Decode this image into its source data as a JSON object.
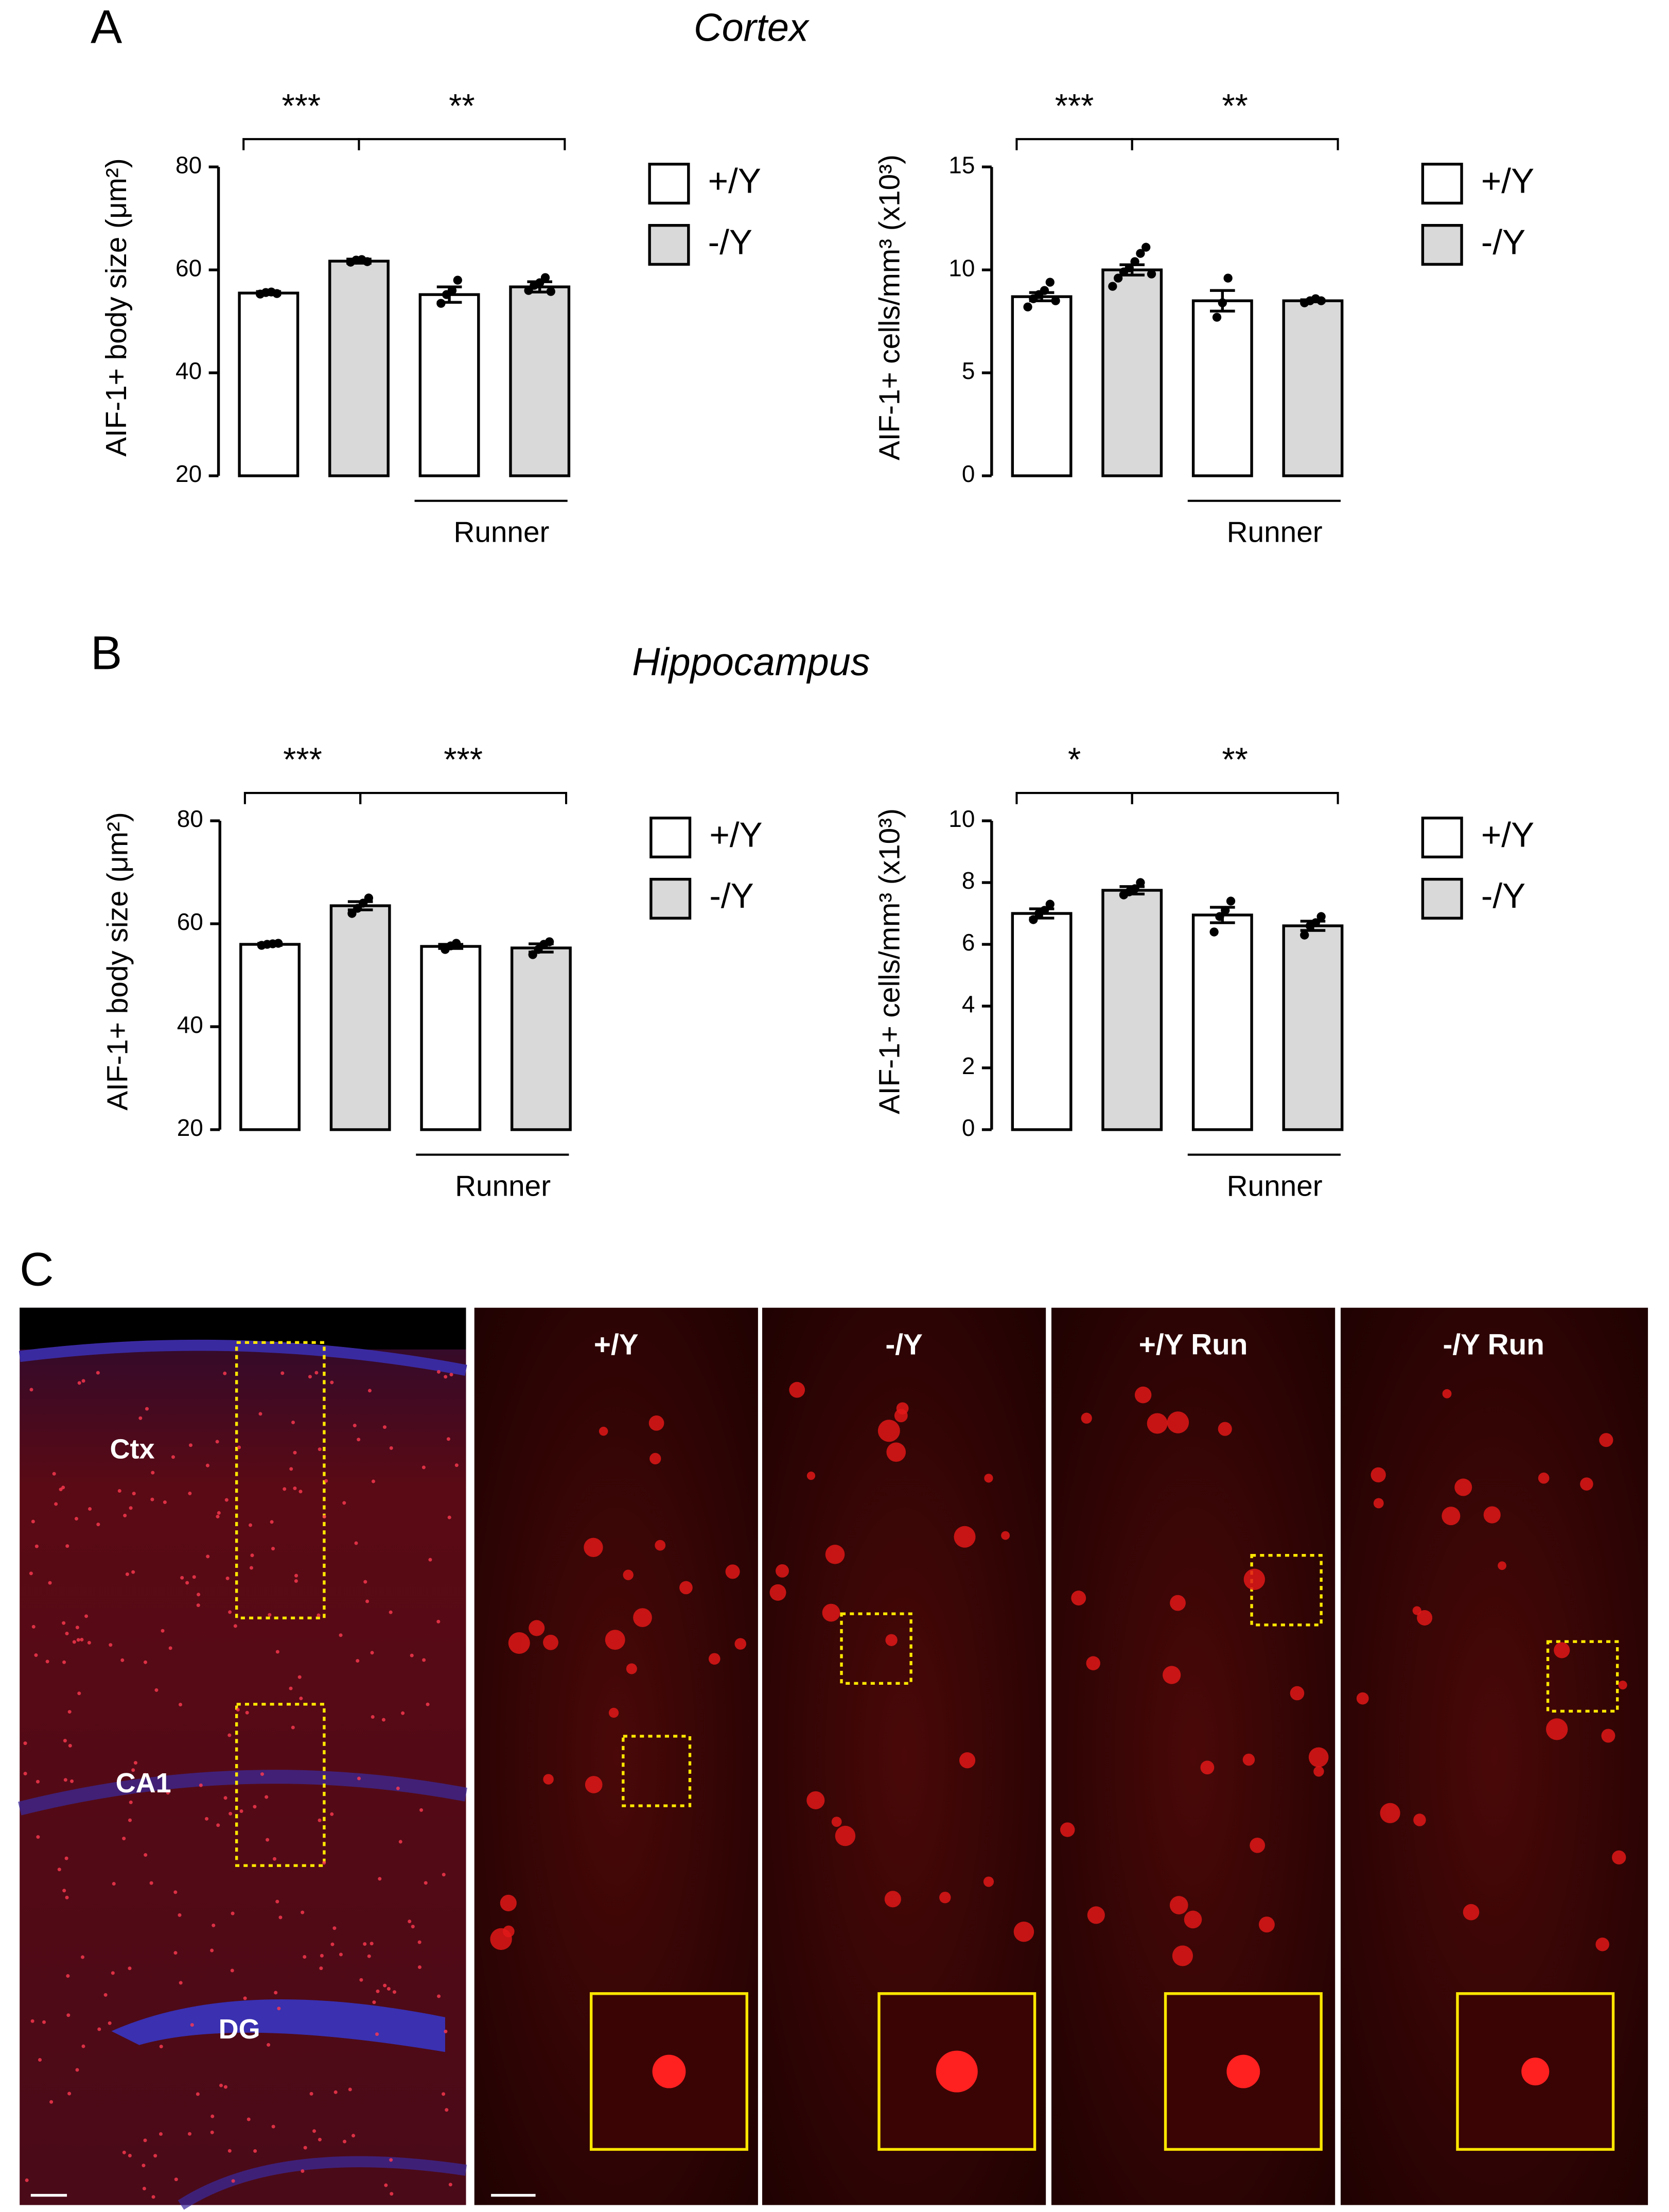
{
  "panel_labels": [
    "A",
    "B",
    "C"
  ],
  "section_titles": [
    "Cortex",
    "Hippocampus"
  ],
  "chart_data": [
    {
      "type": "bar",
      "ylabel": "AIF-1+ body size (μm²)",
      "ylim": [
        20,
        80
      ],
      "yticks": [
        20,
        40,
        60,
        80
      ],
      "categories": [
        null,
        null,
        null,
        null
      ],
      "series": [
        {
          "name": "+/Y",
          "color": "#ffffff",
          "values": [
            55.5,
            null,
            55.2,
            null
          ],
          "errors": [
            0.3,
            null,
            1.5,
            null
          ],
          "points": [
            [
              55.3,
              55.6,
              55.7,
              55.4
            ],
            null,
            [
              53.5,
              55.2,
              56.0,
              58.0
            ],
            null
          ]
        },
        {
          "name": "-/Y",
          "color": "#d9d9d9",
          "values": [
            null,
            61.7,
            null,
            56.7
          ],
          "errors": [
            null,
            0.4,
            null,
            1.0
          ],
          "points": [
            null,
            [
              61.5,
              61.9,
              62.0,
              61.6
            ],
            null,
            [
              56.0,
              57.0,
              57.5,
              58.5,
              55.8
            ]
          ]
        }
      ],
      "significance": [
        {
          "label": "***",
          "pair": [
            0,
            1
          ]
        },
        {
          "label": "**",
          "pair": [
            1,
            3
          ]
        }
      ],
      "group_label": {
        "text": "Runner",
        "categories": [
          2,
          3
        ]
      }
    },
    {
      "type": "bar",
      "ylabel": "AIF-1+ cells/mm³ (x10³)",
      "ylim": [
        0,
        15
      ],
      "yticks": [
        0,
        5,
        10,
        15
      ],
      "categories": [
        null,
        null,
        null,
        null
      ],
      "series": [
        {
          "name": "+/Y",
          "color": "#ffffff",
          "values": [
            8.7,
            null,
            8.5,
            null
          ],
          "errors": [
            0.2,
            null,
            0.5,
            null
          ],
          "points": [
            [
              8.2,
              8.6,
              8.8,
              9.0,
              9.4,
              8.5
            ],
            null,
            [
              7.7,
              8.4,
              9.6
            ],
            null
          ]
        },
        {
          "name": "-/Y",
          "color": "#d9d9d9",
          "values": [
            null,
            10.0,
            null,
            8.5
          ],
          "errors": [
            null,
            0.25,
            null,
            0.05
          ],
          "points": [
            null,
            [
              9.2,
              9.6,
              9.9,
              10.1,
              10.4,
              10.8,
              11.1,
              9.8
            ],
            null,
            [
              8.4,
              8.5,
              8.6,
              8.5
            ]
          ]
        }
      ],
      "significance": [
        {
          "label": "***",
          "pair": [
            0,
            1
          ]
        },
        {
          "label": "**",
          "pair": [
            1,
            3
          ]
        }
      ],
      "group_label": {
        "text": "Runner",
        "categories": [
          2,
          3
        ]
      }
    },
    {
      "type": "bar",
      "ylabel": "AIF-1+ body size (μm²)",
      "ylim": [
        20,
        80
      ],
      "yticks": [
        20,
        40,
        60,
        80
      ],
      "categories": [
        null,
        null,
        null,
        null
      ],
      "series": [
        {
          "name": "+/Y",
          "color": "#ffffff",
          "values": [
            56.0,
            null,
            55.6,
            null
          ],
          "errors": [
            0.2,
            null,
            0.4,
            null
          ],
          "points": [
            [
              55.8,
              56.0,
              56.1,
              56.2
            ],
            null,
            [
              55.0,
              55.7,
              56.2
            ],
            null
          ]
        },
        {
          "name": "-/Y",
          "color": "#d9d9d9",
          "values": [
            null,
            63.5,
            null,
            55.3
          ],
          "errors": [
            null,
            0.8,
            null,
            0.8
          ],
          "points": [
            null,
            [
              62.0,
              63.0,
              64.0,
              65.0
            ],
            null,
            [
              54.0,
              55.0,
              56.0,
              56.5
            ]
          ]
        }
      ],
      "significance": [
        {
          "label": "***",
          "pair": [
            0,
            1
          ]
        },
        {
          "label": "***",
          "pair": [
            1,
            3
          ]
        }
      ],
      "group_label": {
        "text": "Runner",
        "categories": [
          2,
          3
        ]
      }
    },
    {
      "type": "bar",
      "ylabel": "AIF-1+ cells/mm³ (x10³)",
      "ylim": [
        0,
        10
      ],
      "yticks": [
        0,
        2,
        4,
        6,
        8,
        10
      ],
      "categories": [
        null,
        null,
        null,
        null
      ],
      "series": [
        {
          "name": "+/Y",
          "color": "#ffffff",
          "values": [
            7.0,
            null,
            6.95,
            null
          ],
          "errors": [
            0.15,
            null,
            0.25,
            null
          ],
          "points": [
            [
              6.8,
              7.0,
              7.1,
              7.3
            ],
            null,
            [
              6.4,
              6.9,
              7.1,
              7.4
            ],
            null
          ]
        },
        {
          "name": "-/Y",
          "color": "#d9d9d9",
          "values": [
            null,
            7.75,
            null,
            6.6
          ],
          "errors": [
            null,
            0.12,
            null,
            0.15
          ],
          "points": [
            null,
            [
              7.6,
              7.7,
              7.8,
              8.0
            ],
            null,
            [
              6.3,
              6.6,
              6.7,
              6.9
            ]
          ]
        }
      ],
      "significance": [
        {
          "label": "*",
          "pair": [
            0,
            1
          ]
        },
        {
          "label": "**",
          "pair": [
            1,
            3
          ]
        }
      ],
      "group_label": {
        "text": "Runner",
        "categories": [
          2,
          3
        ]
      }
    }
  ],
  "images": {
    "region_labels": [
      "Ctx",
      "CA1",
      "DG"
    ],
    "panel_titles": [
      "+/Y",
      "-/Y",
      "+/Y Run",
      "-/Y Run"
    ]
  }
}
